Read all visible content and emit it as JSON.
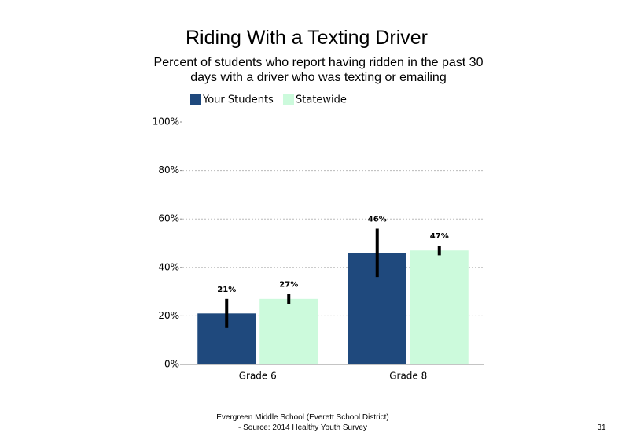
{
  "chart_data": {
    "type": "bar",
    "title": "Riding With a Texting Driver",
    "subtitle": "Percent of students who report having ridden in the past 30 days with a driver who was texting or emailing",
    "categories": [
      "Grade 6",
      "Grade 8"
    ],
    "series": [
      {
        "name": "Your Students",
        "color": "#1f497d",
        "values": [
          21,
          46
        ],
        "value_labels": [
          "21%",
          "46%"
        ],
        "errors": [
          6,
          10
        ]
      },
      {
        "name": "Statewide",
        "color": "#ccfadc",
        "values": [
          27,
          47
        ],
        "value_labels": [
          "27%",
          "47%"
        ],
        "errors": [
          2,
          2
        ]
      }
    ],
    "ylim": [
      0,
      100
    ],
    "yticks": [
      {
        "value": 0,
        "label": "0%"
      },
      {
        "value": 20,
        "label": "20%"
      },
      {
        "value": 40,
        "label": "40%"
      },
      {
        "value": 60,
        "label": "60%"
      },
      {
        "value": 80,
        "label": "80%"
      },
      {
        "value": 100,
        "label": "100%"
      }
    ],
    "grid": true,
    "legend": "top"
  },
  "footer": {
    "lines": [
      "Evergreen Middle School (Everett School District)",
      "- Source: 2014 Healthy Youth Survey"
    ],
    "page_number": "31"
  }
}
